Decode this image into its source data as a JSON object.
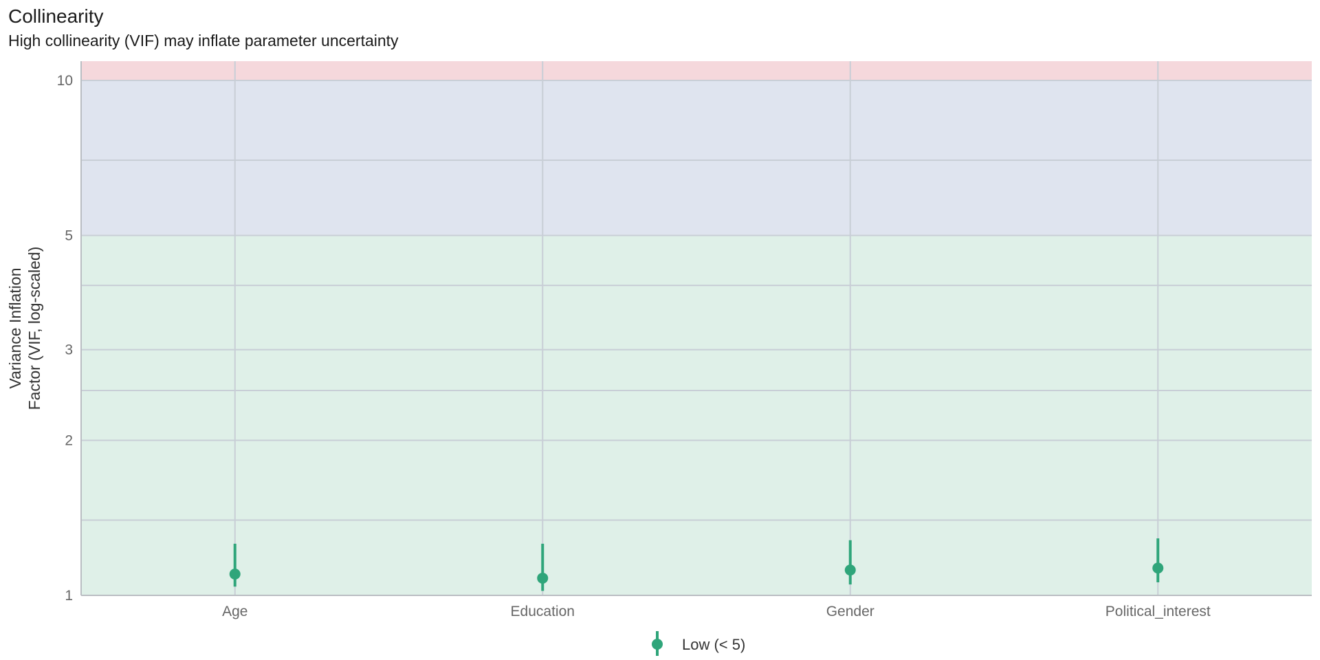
{
  "chart_data": {
    "type": "scatter",
    "title": "Collinearity",
    "subtitle": "High collinearity (VIF) may inflate parameter uncertainty",
    "ylabel_lines": [
      "Variance Inflation",
      "Factor (VIF, log-scaled)"
    ],
    "y_scale": "log",
    "ylim": [
      1,
      10.9
    ],
    "y_ticks": [
      1,
      2,
      3,
      5,
      10
    ],
    "y_minor_ticks": [
      1.4,
      2.5,
      4,
      7
    ],
    "categories": [
      "Age",
      "Education",
      "Gender",
      "Political_interest"
    ],
    "series": [
      {
        "name": "Low (< 5)",
        "color": "#2fa57a",
        "values": [
          1.1,
          1.08,
          1.12,
          1.13
        ],
        "ci_low": [
          1.04,
          1.02,
          1.05,
          1.06
        ],
        "ci_high": [
          1.26,
          1.26,
          1.28,
          1.29
        ]
      }
    ],
    "bands": [
      {
        "from": 1,
        "to": 5,
        "color": "#dff0e8"
      },
      {
        "from": 5,
        "to": 10,
        "color": "#dfe4ef"
      },
      {
        "from": 10,
        "to": 10.9,
        "color": "#f5d8dc"
      }
    ],
    "grid": true,
    "legend_position": "bottom"
  }
}
